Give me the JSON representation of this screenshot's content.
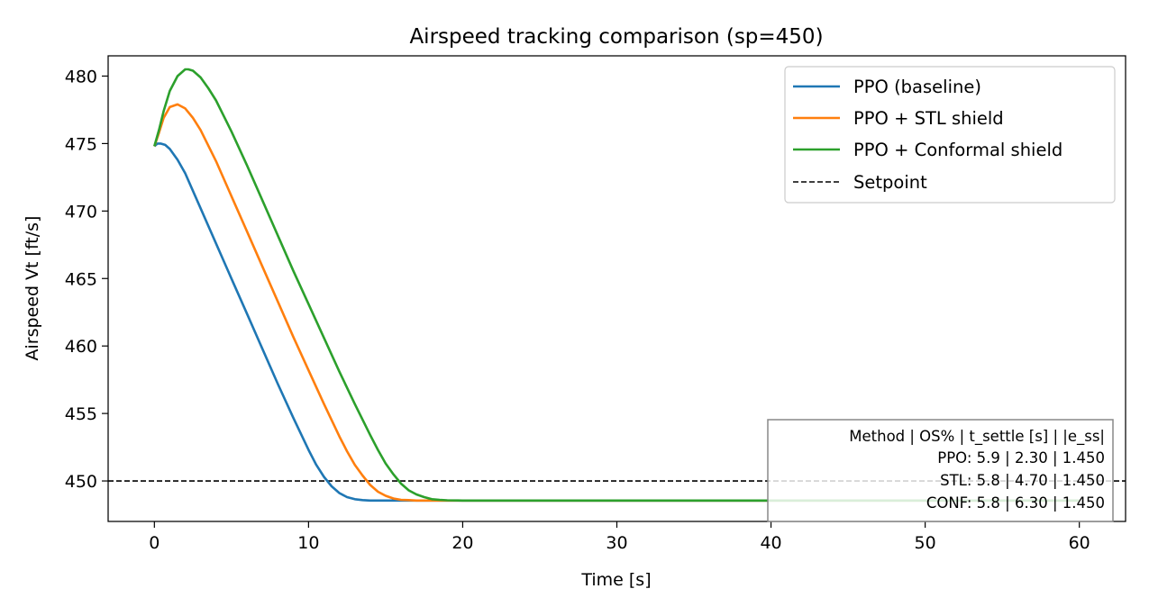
{
  "chart_data": {
    "type": "line",
    "title": "Airspeed tracking comparison (sp=450)",
    "xlabel": "Time [s]",
    "ylabel": "Airspeed Vt [ft/s]",
    "xlim": [
      -3,
      63
    ],
    "ylim": [
      447,
      481.5
    ],
    "xticks": [
      0,
      10,
      20,
      30,
      40,
      50,
      60
    ],
    "yticks": [
      450,
      455,
      460,
      465,
      470,
      475,
      480
    ],
    "grid": false,
    "legend_position": "top-right",
    "setpoint": {
      "name": "Setpoint",
      "value": 450,
      "color": "#000000",
      "style": "dashed"
    },
    "series": [
      {
        "name": "PPO (baseline)",
        "color": "#1f77b4",
        "x": [
          0,
          0.2,
          0.4,
          0.7,
          1.0,
          1.5,
          2.0,
          3.0,
          4.0,
          5.0,
          6.0,
          7.0,
          8.0,
          9.0,
          10.0,
          10.5,
          11.0,
          11.5,
          12.0,
          12.5,
          13.0,
          13.5,
          14.0,
          15.0,
          16.0,
          18.0,
          20.0,
          30.0,
          40.0,
          50.0,
          60.0
        ],
        "y": [
          474.8,
          475.0,
          475.0,
          474.9,
          474.6,
          473.8,
          472.8,
          470.2,
          467.6,
          465.0,
          462.4,
          459.8,
          457.2,
          454.7,
          452.3,
          451.2,
          450.3,
          449.6,
          449.1,
          448.8,
          448.65,
          448.58,
          448.55,
          448.55,
          448.55,
          448.55,
          448.55,
          448.55,
          448.55,
          448.55,
          448.55
        ]
      },
      {
        "name": "PPO + STL shield",
        "color": "#ff7f0e",
        "x": [
          0,
          0.3,
          0.6,
          1.0,
          1.5,
          2.0,
          2.5,
          3.0,
          4.0,
          5.0,
          6.0,
          7.0,
          8.0,
          9.0,
          10.0,
          11.0,
          12.0,
          12.5,
          13.0,
          13.5,
          14.0,
          14.5,
          15.0,
          15.5,
          16.0,
          16.5,
          17.0,
          18.0,
          20.0,
          30.0,
          40.0,
          50.0,
          60.0
        ],
        "y": [
          474.8,
          475.8,
          476.9,
          477.7,
          477.9,
          477.6,
          476.9,
          476.0,
          473.7,
          471.1,
          468.5,
          465.9,
          463.3,
          460.7,
          458.2,
          455.7,
          453.3,
          452.2,
          451.2,
          450.4,
          449.7,
          449.2,
          448.9,
          448.7,
          448.6,
          448.58,
          448.55,
          448.55,
          448.55,
          448.55,
          448.55,
          448.55,
          448.55
        ]
      },
      {
        "name": "PPO + Conformal shield",
        "color": "#2ca02c",
        "x": [
          0,
          0.3,
          0.6,
          1.0,
          1.5,
          2.0,
          2.2,
          2.5,
          3.0,
          3.5,
          4.0,
          5.0,
          6.0,
          7.0,
          8.0,
          9.0,
          10.0,
          11.0,
          12.0,
          13.0,
          14.0,
          14.5,
          15.0,
          15.5,
          16.0,
          16.5,
          17.0,
          17.5,
          18.0,
          18.5,
          19.0,
          20.0,
          30.0,
          40.0,
          50.0,
          60.0
        ],
        "y": [
          474.8,
          476.0,
          477.4,
          478.9,
          480.0,
          480.5,
          480.5,
          480.4,
          479.9,
          479.1,
          478.2,
          475.9,
          473.4,
          470.8,
          468.2,
          465.6,
          463.1,
          460.6,
          458.1,
          455.7,
          453.4,
          452.3,
          451.3,
          450.5,
          449.8,
          449.3,
          449.0,
          448.8,
          448.65,
          448.6,
          448.57,
          448.55,
          448.55,
          448.55,
          448.55,
          448.55
        ]
      }
    ],
    "stats_box": {
      "header": "Method | OS% | t_settle [s] | |e_ss|",
      "rows": [
        "PPO: 5.9 | 2.30 | 1.450",
        "STL: 5.8 | 4.70 | 1.450",
        "CONF: 5.8 | 6.30 | 1.450"
      ]
    }
  }
}
